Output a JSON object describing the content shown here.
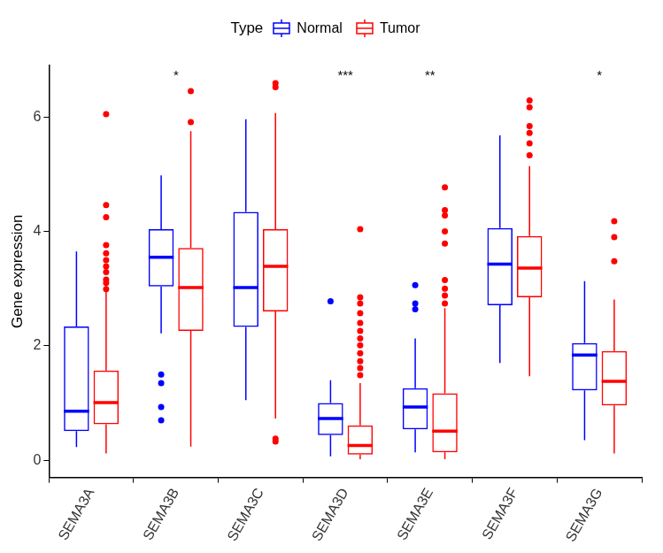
{
  "chart_data": {
    "type": "boxplot",
    "y_label": "Gene expression",
    "legend": "top",
    "legend_title": "Type",
    "grid": false,
    "categories": [
      "SEMA3A",
      "SEMA3B",
      "SEMA3C",
      "SEMA3D",
      "SEMA3E",
      "SEMA3F",
      "SEMA3G"
    ],
    "ylim": [
      -0.3,
      6.9
    ],
    "yticks": [
      0,
      2,
      4,
      6
    ],
    "annotations": [
      {
        "category": "SEMA3B",
        "text": "*"
      },
      {
        "category": "SEMA3D",
        "text": "***"
      },
      {
        "category": "SEMA3E",
        "text": "**"
      },
      {
        "category": "SEMA3G",
        "text": "*"
      }
    ],
    "series": [
      {
        "name": "Normal",
        "color": "#0000FF",
        "values": [
          {
            "min": 0.23,
            "q1": 0.51,
            "median": 0.86,
            "q3": 2.34,
            "max": 3.65,
            "outliers": []
          },
          {
            "min": 2.22,
            "q1": 3.04,
            "median": 3.55,
            "q3": 4.04,
            "max": 4.98,
            "outliers": [
              1.5,
              1.35,
              0.93,
              0.7
            ]
          },
          {
            "min": 1.05,
            "q1": 2.33,
            "median": 3.02,
            "q3": 4.34,
            "max": 5.96,
            "outliers": []
          },
          {
            "min": 0.07,
            "q1": 0.44,
            "median": 0.73,
            "q3": 1.0,
            "max": 1.4,
            "outliers": [
              2.78
            ]
          },
          {
            "min": 0.14,
            "q1": 0.54,
            "median": 0.93,
            "q3": 1.26,
            "max": 2.13,
            "outliers": [
              3.06,
              2.74,
              2.64
            ]
          },
          {
            "min": 1.7,
            "q1": 2.71,
            "median": 3.43,
            "q3": 4.06,
            "max": 5.68,
            "outliers": []
          },
          {
            "min": 0.35,
            "q1": 1.22,
            "median": 1.84,
            "q3": 2.05,
            "max": 3.13,
            "outliers": []
          }
        ]
      },
      {
        "name": "Tumor",
        "color": "#FF0000",
        "values": [
          {
            "min": 0.12,
            "q1": 0.63,
            "median": 1.01,
            "q3": 1.57,
            "max": 3.2,
            "outliers": [
              6.05,
              4.46,
              4.25,
              3.76,
              3.62,
              3.5,
              3.39,
              3.29,
              3.16,
              3.1,
              2.99
            ]
          },
          {
            "min": 0.24,
            "q1": 2.26,
            "median": 3.02,
            "q3": 3.71,
            "max": 5.75,
            "outliers": [
              6.45,
              5.91
            ]
          },
          {
            "min": 0.73,
            "q1": 2.6,
            "median": 3.39,
            "q3": 4.04,
            "max": 6.07,
            "outliers": [
              6.59,
              6.52,
              0.38,
              0.33
            ]
          },
          {
            "min": 0.02,
            "q1": 0.1,
            "median": 0.26,
            "q3": 0.61,
            "max": 1.35,
            "outliers": [
              4.04,
              2.85,
              2.74,
              2.57,
              2.4,
              2.26,
              2.13,
              2.01,
              1.87,
              1.73,
              1.61,
              1.49
            ]
          },
          {
            "min": 0.02,
            "q1": 0.14,
            "median": 0.51,
            "q3": 1.17,
            "max": 2.66,
            "outliers": [
              4.77,
              4.37,
              4.28,
              4.0,
              3.79,
              3.15,
              3.0,
              2.88,
              2.74
            ]
          },
          {
            "min": 1.47,
            "q1": 2.85,
            "median": 3.36,
            "q3": 3.92,
            "max": 5.14,
            "outliers": [
              6.29,
              6.17,
              5.84,
              5.72,
              5.54,
              5.33
            ]
          },
          {
            "min": 0.12,
            "q1": 0.96,
            "median": 1.38,
            "q3": 1.91,
            "max": 2.81,
            "outliers": [
              4.18,
              3.9,
              3.48
            ]
          }
        ]
      }
    ]
  }
}
